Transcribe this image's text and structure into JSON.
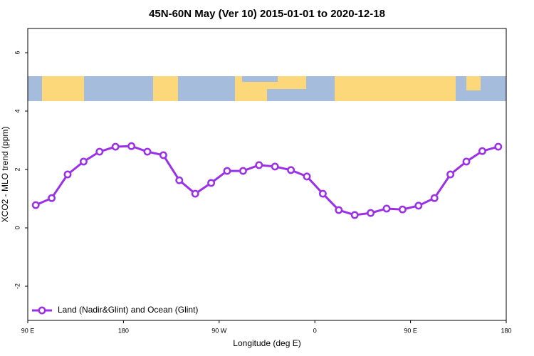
{
  "chart_data": {
    "type": "line",
    "title": "45N-60N May (Ver 10)   2015-01-01 to 2020-12-18",
    "x_label": "Longitude (deg E)",
    "y_label": "XCO2 - MLO trend (ppm)",
    "x": [
      97.5,
      112.5,
      127.5,
      142.5,
      157.5,
      172.5,
      187.5,
      202.5,
      217.5,
      232.5,
      247.5,
      262.5,
      277.5,
      292.5,
      307.5,
      322.5,
      337.5,
      352.5,
      367.5,
      382.5,
      397.5,
      412.5,
      427.5,
      442.5,
      457.5,
      472.5,
      487.5,
      502.5,
      517.5,
      532.5
    ],
    "series": [
      {
        "name": "Land (Nadir&Glint) and Ocean (Glint)",
        "color": "#9b30e8",
        "values": [
          0.78,
          1.02,
          1.83,
          2.27,
          2.61,
          2.78,
          2.8,
          2.61,
          2.49,
          1.63,
          1.17,
          1.54,
          1.95,
          1.95,
          2.15,
          2.1,
          1.98,
          1.76,
          1.17,
          0.61,
          0.44,
          0.51,
          0.66,
          0.63,
          0.76,
          1.02,
          1.83,
          2.27,
          2.63,
          2.78
        ]
      }
    ],
    "xlim": [
      90,
      540
    ],
    "xticks": [
      {
        "value": 90,
        "label": "90 E"
      },
      180,
      {
        "value": 270,
        "label": "90 W"
      },
      {
        "value": 360,
        "label": "0"
      },
      {
        "value": 450,
        "label": "90 E"
      },
      {
        "value": 540,
        "label": "180"
      }
    ],
    "ylim": [
      -3.17,
      6.83
    ],
    "yticks": [
      -2,
      0,
      2,
      4,
      6
    ],
    "legend": "bottom-left"
  }
}
